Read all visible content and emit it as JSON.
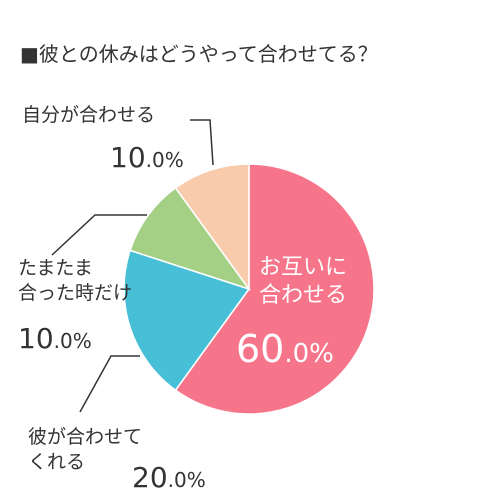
{
  "chart_data": {
    "type": "pie",
    "title": "■彼との休みはどうやって合わせてる？",
    "slices": [
      {
        "label": "お互いに合わせる",
        "label_lines": [
          "お互いに",
          "合わせる"
        ],
        "value": 60.0,
        "pct_int": "60",
        "pct_dec": ".0%",
        "color": "#f7758a"
      },
      {
        "label": "彼が合わせてくれる",
        "label_lines": [
          "彼が合わせて",
          "くれる"
        ],
        "value": 20.0,
        "pct_int": "20",
        "pct_dec": ".0%",
        "color": "#47bfd6"
      },
      {
        "label": "たまたま合った時だけ",
        "label_lines": [
          "たまたま",
          "合った時だけ"
        ],
        "value": 10.0,
        "pct_int": "10",
        "pct_dec": ".0%",
        "color": "#a3d085"
      },
      {
        "label": "自分が合わせる",
        "label_lines": [
          "自分が合わせる"
        ],
        "value": 10.0,
        "pct_int": "10",
        "pct_dec": ".0%",
        "color": "#f8cbad"
      }
    ],
    "start": "12 o'clock",
    "direction": "clockwise"
  }
}
